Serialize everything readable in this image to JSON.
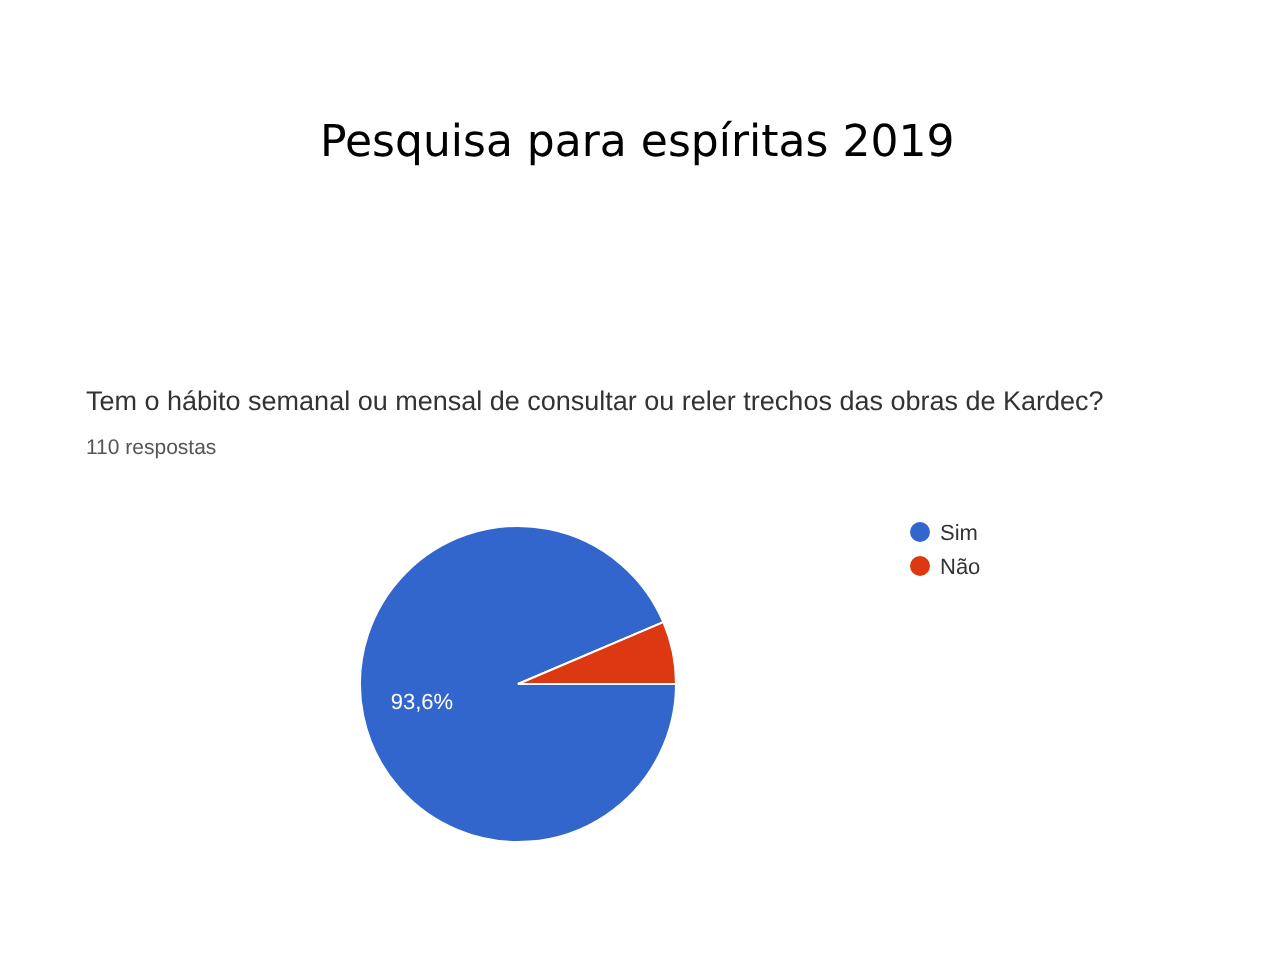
{
  "chart_data": {
    "type": "pie",
    "title": "Pesquisa para espíritas 2019",
    "subtitle": "Tem o hábito semanal ou mensal de consultar ou reler trechos das obras de Kardec?",
    "annotations": [
      "110 respostas"
    ],
    "categories": [
      "Sim",
      "Não"
    ],
    "values": [
      93.6,
      6.4
    ],
    "colors": [
      "#3366cc",
      "#dc3912"
    ],
    "value_labels": [
      "93,6%",
      null
    ],
    "legend": "right"
  }
}
